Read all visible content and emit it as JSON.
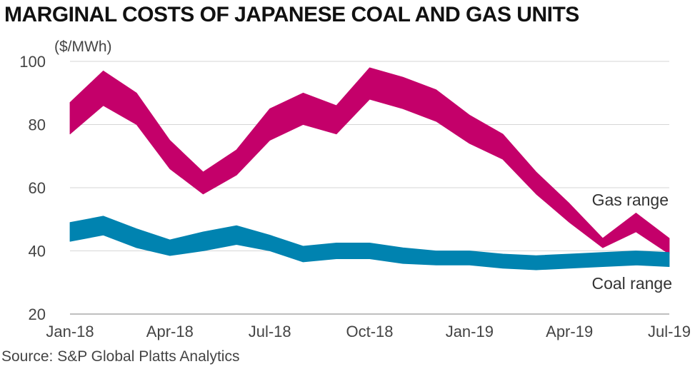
{
  "chart_data": {
    "type": "area",
    "title": "MARGINAL COSTS OF JAPANESE COAL AND GAS UNITS",
    "ylabel": "($/MWh)",
    "xlabel": "",
    "ylim": [
      20,
      100
    ],
    "yticks": [
      20,
      40,
      60,
      80,
      100
    ],
    "grid": true,
    "x": [
      "Jan-18",
      "Feb-18",
      "Mar-18",
      "Apr-18",
      "May-18",
      "Jun-18",
      "Jul-18",
      "Aug-18",
      "Sep-18",
      "Oct-18",
      "Nov-18",
      "Dec-18",
      "Jan-19",
      "Feb-19",
      "Mar-19",
      "Apr-19",
      "May-19",
      "Jun-19",
      "Jul-19"
    ],
    "xtick_labels": [
      "Jan-18",
      "Apr-18",
      "Jul-18",
      "Oct-18",
      "Jan-19",
      "Apr-19",
      "Jul-19"
    ],
    "xtick_indices": [
      0,
      3,
      6,
      9,
      12,
      15,
      18
    ],
    "series": [
      {
        "name": "Gas range",
        "color": "#c4006a",
        "low": [
          77,
          86,
          80,
          66,
          58,
          64,
          75,
          80,
          77,
          88,
          85,
          81,
          74,
          69,
          58,
          49,
          41,
          46,
          39
        ],
        "high": [
          87,
          97,
          90,
          75,
          65,
          72,
          85,
          90,
          86,
          98,
          95,
          91,
          83,
          77,
          65,
          55,
          44,
          52,
          44
        ]
      },
      {
        "name": "Coal range",
        "color": "#0083b0",
        "low": [
          43,
          45,
          41,
          38.5,
          40,
          42,
          40,
          36.5,
          37.5,
          37.5,
          36,
          35.5,
          35.5,
          34.5,
          34,
          34.5,
          35,
          35.5,
          35
        ],
        "high": [
          49,
          51,
          47,
          43.5,
          46,
          48,
          45,
          41.5,
          42.5,
          42.5,
          41,
          40,
          40,
          39,
          38.5,
          39,
          39.5,
          40,
          39.5
        ]
      }
    ],
    "annotations": [
      "Gas range",
      "Coal range"
    ],
    "source": "Source: S&P Global Platts Analytics"
  }
}
